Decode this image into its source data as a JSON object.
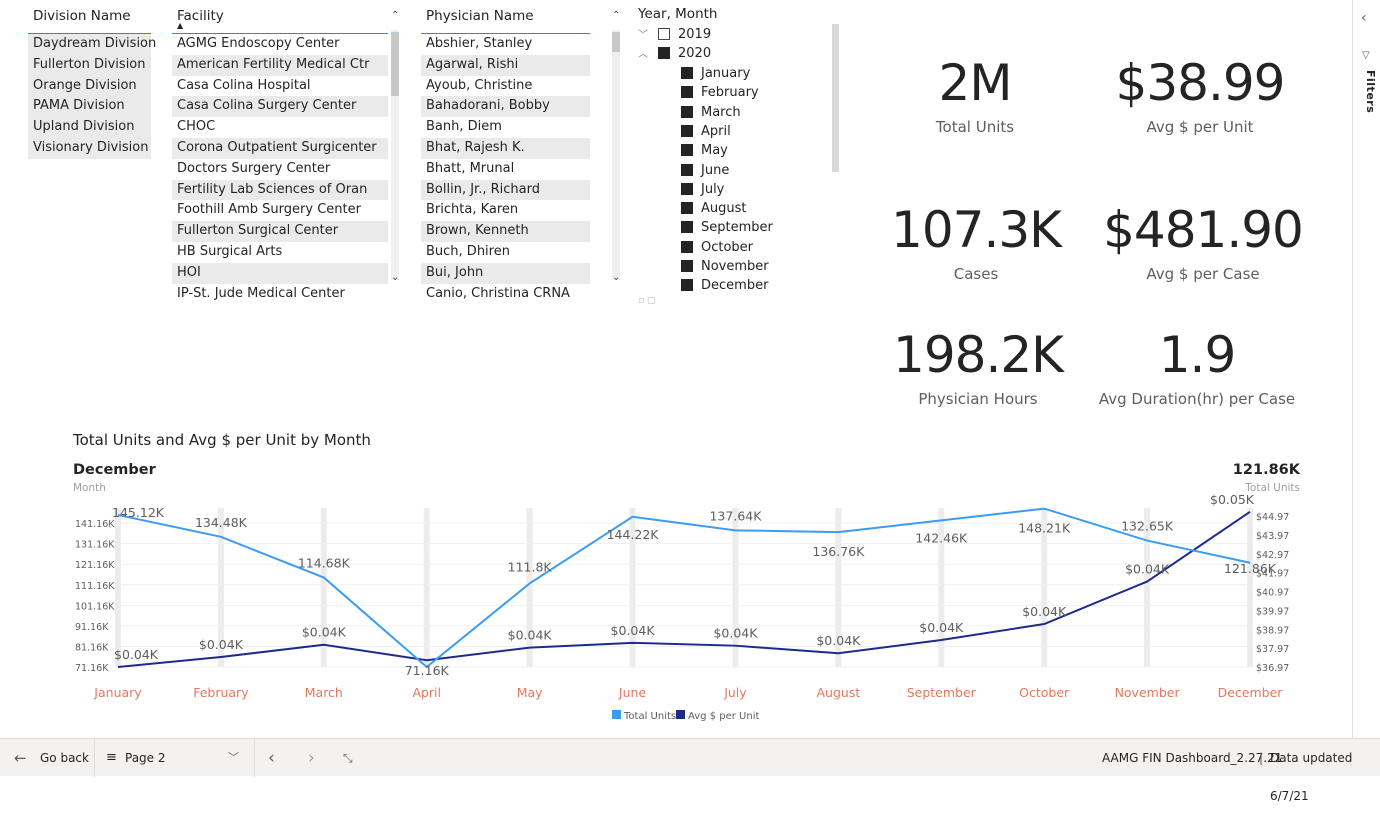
{
  "slicers": {
    "division": {
      "header": "Division Name",
      "items": [
        "Daydream Division",
        "Fullerton Division",
        "Orange Division",
        "PAMA Division",
        "Upland Division",
        "Visionary Division"
      ]
    },
    "facility": {
      "header": "Facility",
      "items": [
        "AGMG Endoscopy Center",
        "American Fertility Medical Ctr",
        "Casa Colina Hospital",
        "Casa Colina Surgery Center",
        "CHOC",
        "Corona Outpatient Surgicenter",
        "Doctors Surgery Center",
        "Fertility Lab Sciences of Oran",
        "Foothill Amb Surgery Center",
        "Fullerton Surgical Center",
        "HB Surgical Arts",
        "HOI",
        "IP-St. Jude Medical Center"
      ]
    },
    "physician": {
      "header": "Physician Name",
      "items": [
        "Abshier, Stanley",
        "Agarwal, Rishi",
        "Ayoub, Christine",
        "Bahadorani, Bobby",
        "Banh, Diem",
        "Bhat, Rajesh K.",
        "Bhatt, Mrunal",
        "Bollin, Jr., Richard",
        "Brichta, Karen",
        "Brown, Kenneth",
        "Buch, Dhiren",
        "Bui, John",
        "Canio, Christina CRNA"
      ]
    },
    "yearmonth": {
      "header": "Year, Month",
      "years": [
        "2019",
        "2020"
      ],
      "months": [
        "January",
        "February",
        "March",
        "April",
        "May",
        "June",
        "July",
        "August",
        "September",
        "October",
        "November",
        "December"
      ]
    }
  },
  "kpis": [
    {
      "value": "2M",
      "label": "Total Units"
    },
    {
      "value": "$38.99",
      "label": "Avg $ per Unit"
    },
    {
      "value": "107.3K",
      "label": "Cases"
    },
    {
      "value": "$481.90",
      "label": "Avg $ per Case"
    },
    {
      "value": "198.2K",
      "label": "Physician Hours"
    },
    {
      "value": "1.9",
      "label": "Avg Duration(hr) per Case"
    }
  ],
  "chart_header": {
    "title": "Total Units and Avg $ per Unit by Month",
    "tooltip_month_value": "December",
    "tooltip_month_label": "Month",
    "tooltip_units_value": "121.86K",
    "tooltip_units_label": "Total Units"
  },
  "chart_data": {
    "type": "line",
    "title": "Total Units and Avg $ per Unit by Month",
    "categories": [
      "January",
      "February",
      "March",
      "April",
      "May",
      "June",
      "July",
      "August",
      "September",
      "October",
      "November",
      "December"
    ],
    "series": [
      {
        "name": "Total Units",
        "axis": "left",
        "color": "#3b9cf3",
        "values": [
          145.12,
          134.48,
          114.68,
          71.16,
          111.8,
          144.22,
          137.64,
          136.76,
          142.46,
          148.21,
          132.65,
          121.86
        ],
        "labels": [
          "145.12K",
          "134.48K",
          "114.68K",
          "71.16K",
          "111.8K",
          "144.22K",
          "137.64K",
          "136.76K",
          "142.46K",
          "148.21K",
          "132.65K",
          "121.86K"
        ]
      },
      {
        "name": "Avg $ per Unit",
        "axis": "right",
        "color": "#1c2b8c",
        "values": [
          36.97,
          37.5,
          38.15,
          37.33,
          38.0,
          38.25,
          38.1,
          37.7,
          38.4,
          39.25,
          41.5,
          45.2
        ],
        "labels": [
          "$0.04K",
          "$0.04K",
          "$0.04K",
          "",
          "$0.04K",
          "$0.04K",
          "$0.04K",
          "$0.04K",
          "$0.04K",
          "$0.04K",
          "$0.04K",
          "$0.05K"
        ]
      }
    ],
    "left_ticks": [
      "141.16K",
      "131.16K",
      "121.16K",
      "111.16K",
      "101.16K",
      "91.16K",
      "81.16K",
      "71.16K"
    ],
    "left_tick_values": [
      141.16,
      131.16,
      121.16,
      111.16,
      101.16,
      91.16,
      81.16,
      71.16
    ],
    "left_range": [
      71.16,
      148.5
    ],
    "right_ticks": [
      "$44.97",
      "$43.97",
      "$42.97",
      "$41.97",
      "$40.97",
      "$39.97",
      "$38.97",
      "$37.97",
      "$36.97"
    ],
    "right_tick_values": [
      44.97,
      43.97,
      42.97,
      41.97,
      40.97,
      39.97,
      38.97,
      37.97,
      36.97
    ],
    "right_range": [
      36.97,
      45.4
    ],
    "legend": [
      "Total Units",
      "Avg $ per Unit"
    ],
    "legend_position": "bottom-center"
  },
  "bottom_bar": {
    "go_back": "Go back",
    "page": "Page 2",
    "file": "AAMG FIN Dashboard_2.27.21",
    "separator": "|",
    "updated": "Data updated 6/7/21"
  },
  "filters_label": "Filters"
}
